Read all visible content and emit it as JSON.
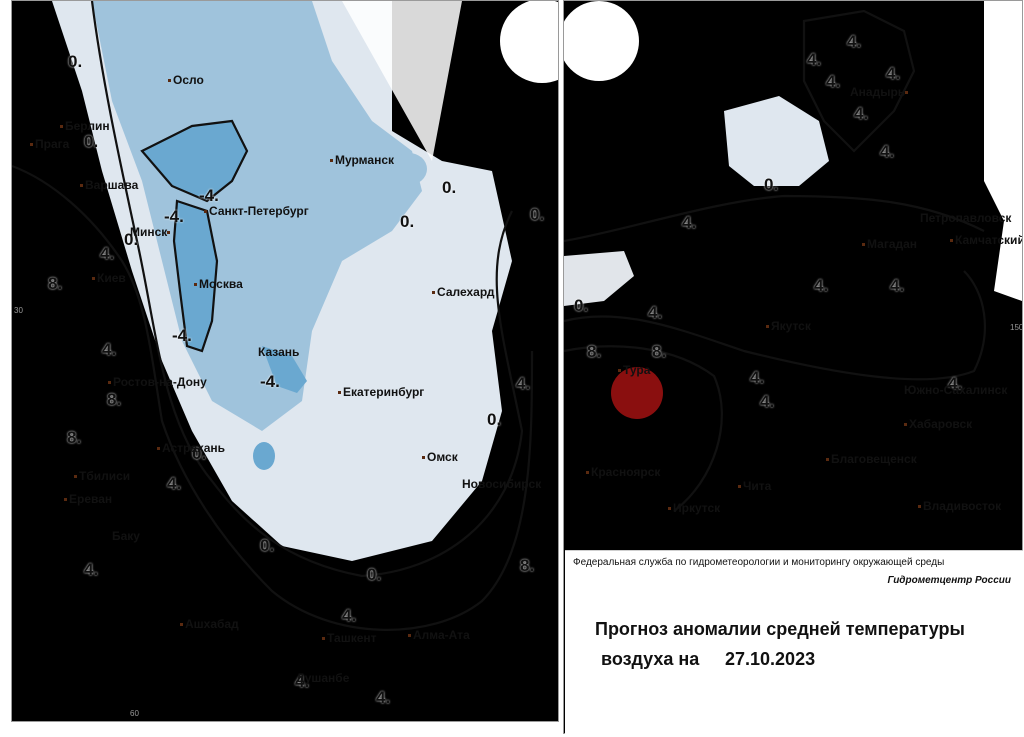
{
  "colors": {
    "below_minus_4": "#6aa8d0",
    "minus_4_to_minus_2": "#9fc3dc",
    "minus_2_to_0": "#dfe7ef",
    "zero_to_2": "#dfc08e",
    "two_to_4": "#d4875c",
    "four_to_6": "#e46a3a",
    "six_to_8": "#b8411c",
    "above_8": "#8a0f0f",
    "isoline": "#111111"
  },
  "cities": {
    "oslo": "Осло",
    "berlin": "Берлин",
    "praga": "Прага",
    "varshava": "Варшава",
    "minsk": "Минск",
    "st_petersburg": "Санкт-Петербург",
    "murmansk": "Мурманск",
    "kiev": "Киев",
    "moskva": "Москва",
    "kazan": "Казань",
    "rostov": "Ростов-на-Дону",
    "ekaterinburg": "Екатеринбург",
    "salekhard": "Салехард",
    "astrakhan": "Астрахань",
    "omsk": "Омск",
    "tbilisi": "Тбилиси",
    "novosibirsk": "Новосибирск",
    "erevan": "Ереван",
    "baku": "Баку",
    "ashkhabad": "Ашхабад",
    "tashkent": "Ташкент",
    "alma_ata": "Алма-Ата",
    "dushanbe": "Душанбе",
    "anadyr": "Анадырь",
    "petropavlovsk": "Петропавловск",
    "kamchatsky": "Камчатский",
    "magadan": "Магадан",
    "yakutsk": "Якутск",
    "tura": "Тура",
    "yuzhno_sakhalinsk": "Южно-Сахалинск",
    "khabarovsk": "Хабаровск",
    "blagoveshchensk": "Благовещенск",
    "krasnoyarsk": "Красноярск",
    "chita": "Чита",
    "irkutsk": "Иркутск",
    "vladivostok": "Владивосток"
  },
  "isoline_labels": {
    "zero": "0.",
    "minus_four": "-4.",
    "four": "4.",
    "eight": "8."
  },
  "grid_labels": {
    "lon_30": "30",
    "lon_60": "60",
    "lon_150": "150"
  },
  "info": {
    "agency": "Федеральная служба по гидрометеорологии и мониторингу окружающей среды",
    "center": "Гидрометцентр России",
    "title_line1": "Прогноз аномалии средней температуры",
    "title_line2": "воздуха на",
    "date": "27.10.2023"
  }
}
